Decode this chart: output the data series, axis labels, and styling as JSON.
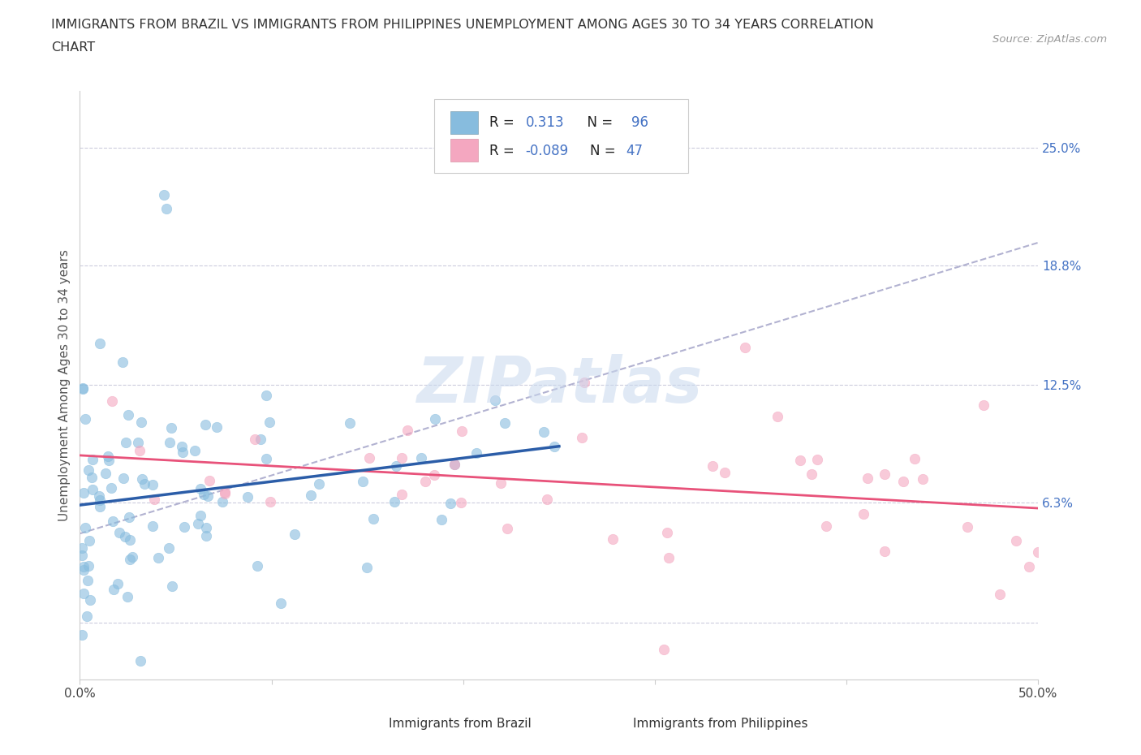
{
  "title_line1": "IMMIGRANTS FROM BRAZIL VS IMMIGRANTS FROM PHILIPPINES UNEMPLOYMENT AMONG AGES 30 TO 34 YEARS CORRELATION",
  "title_line2": "CHART",
  "source": "Source: ZipAtlas.com",
  "ylabel": "Unemployment Among Ages 30 to 34 years",
  "xlim": [
    0,
    50
  ],
  "ylim": [
    -3,
    28
  ],
  "ytick_vals": [
    0,
    6.3,
    12.5,
    18.8,
    25.0
  ],
  "brazil_R": 0.313,
  "brazil_N": 96,
  "philippines_R": -0.089,
  "philippines_N": 47,
  "blue_scatter_color": "#87BCDE",
  "pink_scatter_color": "#F4A7C0",
  "blue_line_color": "#2B5DA8",
  "pink_line_color": "#E8527A",
  "gray_dash_color": "#AAAACC",
  "watermark": "ZIPatlas",
  "background_color": "#ffffff",
  "grid_color": "#CCCCDD",
  "tick_color": "#4472c4",
  "axis_label_color": "#555555",
  "title_color": "#333333"
}
